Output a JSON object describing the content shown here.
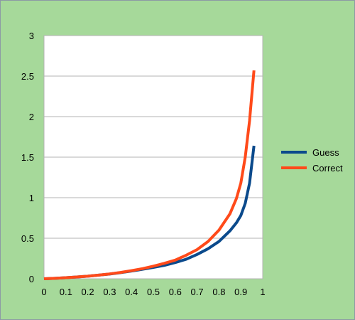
{
  "chart_data": {
    "type": "line",
    "title": "",
    "xlabel": "",
    "ylabel": "",
    "xlim": [
      0,
      1
    ],
    "ylim": [
      0,
      3
    ],
    "x_ticks": [
      "0",
      "0.1",
      "0.2",
      "0.3",
      "0.4",
      "0.5",
      "0.6",
      "0.7",
      "0.8",
      "0.9",
      "1"
    ],
    "y_ticks": [
      "0",
      "0.5",
      "1",
      "1.5",
      "2",
      "2.5",
      "3"
    ],
    "grid": "horizontal",
    "legend_position": "right",
    "background_color": "#a6d99a",
    "plot_background_color": "#ffffff",
    "series": [
      {
        "name": "Guess",
        "color": "#0b4a8c",
        "x": [
          0,
          0.05,
          0.1,
          0.15,
          0.2,
          0.25,
          0.3,
          0.35,
          0.4,
          0.45,
          0.5,
          0.55,
          0.6,
          0.65,
          0.7,
          0.75,
          0.8,
          0.85,
          0.88,
          0.9,
          0.92,
          0.94,
          0.96
        ],
        "y": [
          0,
          0.005,
          0.013,
          0.022,
          0.032,
          0.045,
          0.058,
          0.075,
          0.095,
          0.117,
          0.14,
          0.165,
          0.2,
          0.24,
          0.3,
          0.37,
          0.46,
          0.59,
          0.69,
          0.78,
          0.93,
          1.18,
          1.64
        ]
      },
      {
        "name": "Correct",
        "color": "#ff4a1a",
        "x": [
          0,
          0.05,
          0.1,
          0.15,
          0.2,
          0.25,
          0.3,
          0.35,
          0.4,
          0.45,
          0.5,
          0.55,
          0.6,
          0.65,
          0.7,
          0.75,
          0.8,
          0.85,
          0.88,
          0.9,
          0.92,
          0.94,
          0.96
        ],
        "y": [
          0,
          0.005,
          0.013,
          0.022,
          0.032,
          0.045,
          0.06,
          0.078,
          0.1,
          0.125,
          0.155,
          0.19,
          0.23,
          0.29,
          0.36,
          0.46,
          0.6,
          0.8,
          0.99,
          1.18,
          1.5,
          1.95,
          2.57
        ]
      }
    ]
  }
}
